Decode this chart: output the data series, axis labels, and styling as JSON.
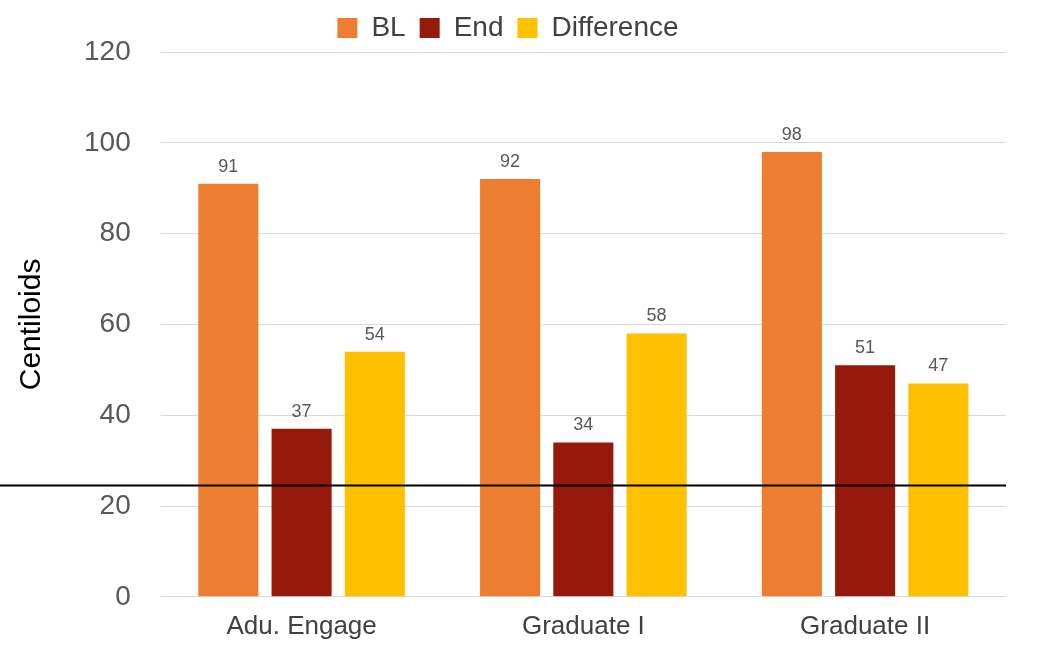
{
  "chart_data": {
    "type": "bar",
    "ylabel": "Centiloids",
    "categories": [
      "Adu. Engage",
      "Graduate I",
      "Graduate II"
    ],
    "series": [
      {
        "name": "BL",
        "color": "#ed7d31",
        "values": [
          91,
          92,
          98
        ]
      },
      {
        "name": "End",
        "color": "#961a0c",
        "values": [
          37,
          34,
          51
        ]
      },
      {
        "name": "Difference",
        "color": "#ffc000",
        "values": [
          54,
          58,
          47
        ]
      }
    ],
    "ylim": [
      0,
      120
    ],
    "yticks": [
      0,
      20,
      40,
      60,
      80,
      100,
      120
    ],
    "grid": "y",
    "legend": "top",
    "data_labels": true,
    "ref_lines": [
      {
        "axis": "y",
        "value": 24.5,
        "color": "#000000"
      }
    ]
  }
}
